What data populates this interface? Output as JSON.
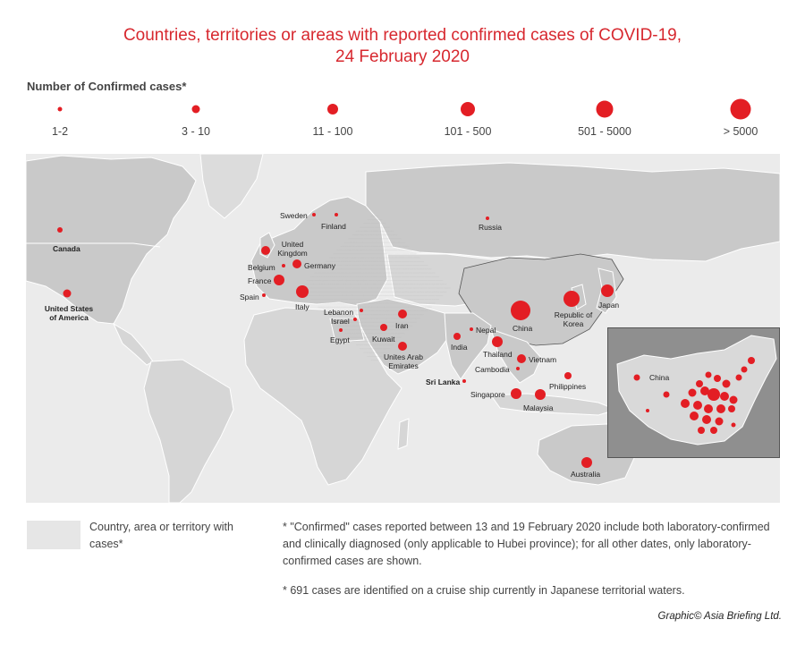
{
  "title": {
    "line1": "Countries, territories or areas with reported confirmed cases of COVID-19,",
    "line2": "24 February 2020"
  },
  "legend": {
    "heading": "Number of Confirmed cases*",
    "items": [
      {
        "label": "1-2"
      },
      {
        "label": "3 - 10"
      },
      {
        "label": "11 - 100"
      },
      {
        "label": "101 - 500"
      },
      {
        "label": "501 - 5000"
      },
      {
        "label": "> 5000"
      }
    ]
  },
  "map": {
    "marker_color": "#e31e24",
    "land_color_cases": "#c8c8c8",
    "land_color_none": "#dcdcdc",
    "countries": [
      {
        "id": "canada",
        "label": "Canada",
        "category": "1-2"
      },
      {
        "id": "usa",
        "label": "United States of America",
        "category": "11 - 100"
      },
      {
        "id": "sweden",
        "label": "Sweden",
        "category": "1-2"
      },
      {
        "id": "finland",
        "label": "Finland",
        "category": "1-2"
      },
      {
        "id": "russia",
        "label": "Russia",
        "category": "1-2"
      },
      {
        "id": "uk",
        "label": "United Kingdom",
        "category": "11 - 100"
      },
      {
        "id": "belgium",
        "label": "Belgium",
        "category": "1-2"
      },
      {
        "id": "germany",
        "label": "Germany",
        "category": "11 - 100"
      },
      {
        "id": "france",
        "label": "France",
        "category": "11 - 100"
      },
      {
        "id": "spain",
        "label": "Spain",
        "category": "1-2"
      },
      {
        "id": "italy",
        "label": "Italy",
        "category": "101 - 500"
      },
      {
        "id": "lebanon",
        "label": "Lebanon",
        "category": "1-2"
      },
      {
        "id": "israel",
        "label": "Israel",
        "category": "1-2"
      },
      {
        "id": "egypt",
        "label": "Egypt",
        "category": "1-2"
      },
      {
        "id": "iran",
        "label": "Iran",
        "category": "11 - 100"
      },
      {
        "id": "kuwait",
        "label": "Kuwait",
        "category": "3 - 10"
      },
      {
        "id": "uae",
        "label": "Unites Arab Emirates",
        "category": "11 - 100"
      },
      {
        "id": "india",
        "label": "India",
        "category": "3 - 10"
      },
      {
        "id": "nepal",
        "label": "Nepal",
        "category": "1-2"
      },
      {
        "id": "srilanka",
        "label": "Sri Lanka",
        "category": "1-2"
      },
      {
        "id": "china",
        "label": "China",
        "category": "> 5000"
      },
      {
        "id": "korea",
        "label": "Republic of Korea",
        "category": "501 - 5000"
      },
      {
        "id": "japan",
        "label": "Japan",
        "category": "101 - 500"
      },
      {
        "id": "thailand",
        "label": "Thailand",
        "category": "11 - 100"
      },
      {
        "id": "vietnam",
        "label": "Vietnam",
        "category": "11 - 100"
      },
      {
        "id": "cambodia",
        "label": "Cambodia",
        "category": "1-2"
      },
      {
        "id": "philippines",
        "label": "Philippines",
        "category": "3 - 10"
      },
      {
        "id": "singapore",
        "label": "Singapore",
        "category": "11 - 100"
      },
      {
        "id": "malaysia",
        "label": "Malaysia",
        "category": "11 - 100"
      },
      {
        "id": "australia",
        "label": "Australia",
        "category": "11 - 100"
      }
    ],
    "inset_label": "China"
  },
  "key": {
    "label": "Country, area or territory with cases*"
  },
  "notes": [
    "* \"Confirmed\" cases reported between 13 and 19 February 2020 include both laboratory-confirmed and clinically diagnosed (only applicable to Hubei province); for all other dates, only laboratory-confirmed cases are shown.",
    "* 691 cases are identified on a cruise ship currently in Japanese territorial waters."
  ],
  "credit": "Graphic© Asia Briefing Ltd."
}
